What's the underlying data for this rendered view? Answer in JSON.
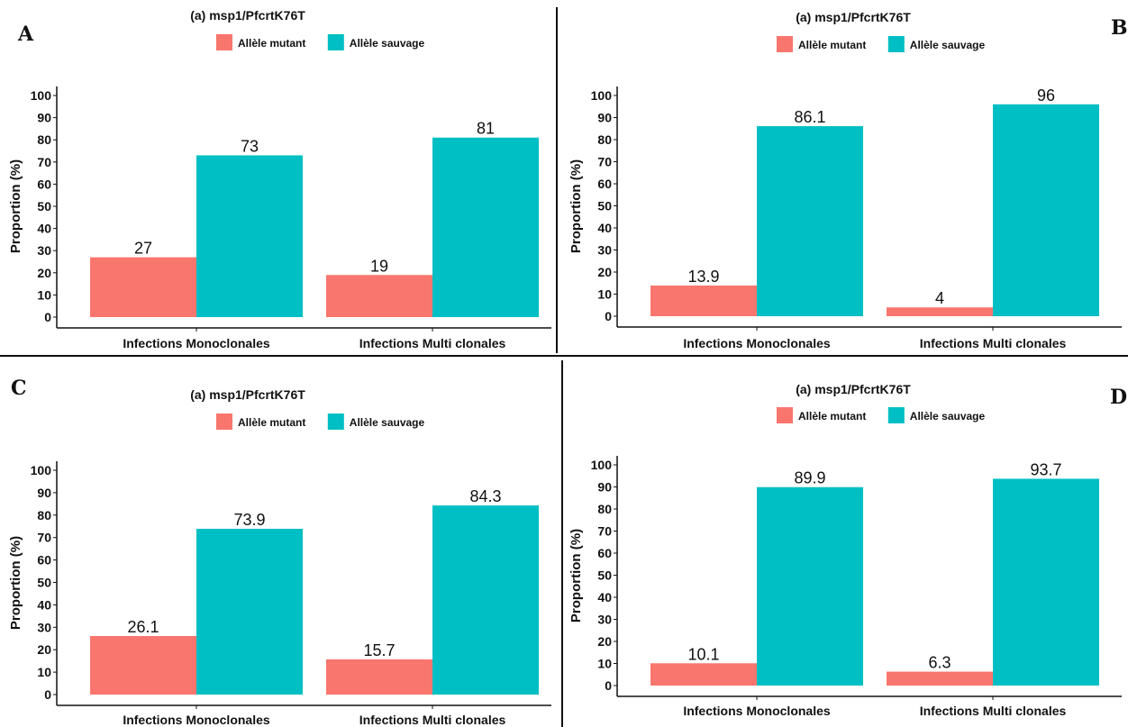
{
  "panels": [
    {
      "letter": "A"
    },
    {
      "letter": "B"
    },
    {
      "letter": "C"
    },
    {
      "letter": "D"
    }
  ],
  "colors": {
    "mutant": "#F8766D",
    "wild": "#00BFC4",
    "axis": "#111111"
  },
  "chart_data": [
    {
      "type": "bar",
      "title": "(a) msp1/PfcrtK76T",
      "categories": [
        "Infections Monoclonales",
        "Infections Multi clonales"
      ],
      "series": [
        {
          "name": "Allèle mutant",
          "values": [
            27,
            19
          ]
        },
        {
          "name": "Allèle sauvage",
          "values": [
            73,
            81
          ]
        }
      ],
      "data_labels": [
        [
          "27",
          "19"
        ],
        [
          "73",
          "81"
        ]
      ],
      "yticks": [
        "0",
        "10",
        "20",
        "30",
        "40",
        "50",
        "60",
        "70",
        "80",
        "90",
        "100"
      ],
      "xlabel": "",
      "ylabel": "Proportion (%)",
      "ylim": [
        0,
        100
      ],
      "legend": "top",
      "grid": false
    },
    {
      "type": "bar",
      "title": "(a) msp1/PfcrtK76T",
      "categories": [
        "Infections Monoclonales",
        "Infections Multi clonales"
      ],
      "series": [
        {
          "name": "Allèle mutant",
          "values": [
            13.9,
            4
          ]
        },
        {
          "name": "Allèle sauvage",
          "values": [
            86.1,
            96
          ]
        }
      ],
      "data_labels": [
        [
          "13.9",
          "4"
        ],
        [
          "86.1",
          "96"
        ]
      ],
      "yticks": [
        "0",
        "10",
        "20",
        "30",
        "40",
        "50",
        "60",
        "70",
        "80",
        "90",
        "100"
      ],
      "xlabel": "",
      "ylabel": "Proportion (%)",
      "ylim": [
        0,
        100
      ],
      "legend": "top",
      "grid": false
    },
    {
      "type": "bar",
      "title": "(a) msp1/PfcrtK76T",
      "categories": [
        "Infections Monoclonales",
        "Infections Multi clonales"
      ],
      "series": [
        {
          "name": "Allèle mutant",
          "values": [
            26.1,
            15.7
          ]
        },
        {
          "name": "Allèle sauvage",
          "values": [
            73.9,
            84.3
          ]
        }
      ],
      "data_labels": [
        [
          "26.1",
          "15.7"
        ],
        [
          "73.9",
          "84.3"
        ]
      ],
      "yticks": [
        "0",
        "10",
        "20",
        "30",
        "40",
        "50",
        "60",
        "70",
        "80",
        "90",
        "100"
      ],
      "xlabel": "",
      "ylabel": "Proportion (%)",
      "ylim": [
        0,
        100
      ],
      "legend": "top",
      "grid": false
    },
    {
      "type": "bar",
      "title": "(a) msp1/PfcrtK76T",
      "categories": [
        "Infections Monoclonales",
        "Infections Multi clonales"
      ],
      "series": [
        {
          "name": "Allèle mutant",
          "values": [
            10.1,
            6.3
          ]
        },
        {
          "name": "Allèle sauvage",
          "values": [
            89.9,
            93.7
          ]
        }
      ],
      "data_labels": [
        [
          "10.1",
          "6.3"
        ],
        [
          "89.9",
          "93.7"
        ]
      ],
      "yticks": [
        "0",
        "10",
        "20",
        "30",
        "40",
        "50",
        "60",
        "70",
        "80",
        "90",
        "100"
      ],
      "xlabel": "",
      "ylabel": "Proportion (%)",
      "ylim": [
        0,
        100
      ],
      "legend": "top",
      "grid": false
    }
  ]
}
